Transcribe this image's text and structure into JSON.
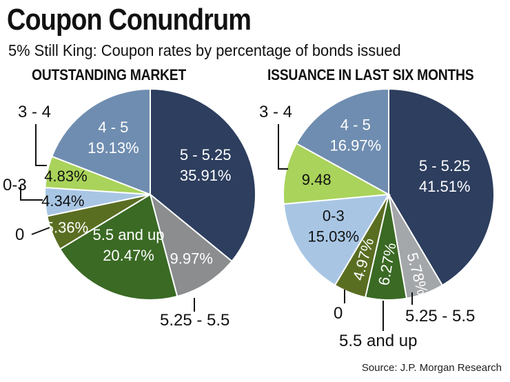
{
  "header": {
    "title": "Coupon Conundrum",
    "subtitle": "5% Still King: Coupon rates by percentage of bonds issued"
  },
  "footer": {
    "source": "Source: J.P. Morgan Research"
  },
  "colors": {
    "navy": "#2d3e5e",
    "steel": "#6f8db0",
    "lightgreen": "#a9d35a",
    "lightblue": "#a8c6e4",
    "olive": "#5a6e22",
    "green": "#3a6a24",
    "gray": "#8b8d8f",
    "lightgray": "#a4a7aa"
  },
  "chart_data": [
    {
      "type": "pie",
      "title": "OUTSTANDING MARKET",
      "slices": [
        {
          "category": "5 - 5.25",
          "value": 35.91,
          "label": "35.91%",
          "color": "#2d3e5e"
        },
        {
          "category": "5.25 - 5.5",
          "value": 9.97,
          "label": "9.97%",
          "color": "#8b8d8f"
        },
        {
          "category": "5.5 and up",
          "value": 20.47,
          "label": "20.47%",
          "color": "#3a6a24"
        },
        {
          "category": "0",
          "value": 5.36,
          "label": "5.36%",
          "color": "#5a6e22"
        },
        {
          "category": "0-3",
          "value": 4.34,
          "label": "4.34%",
          "color": "#a8c6e4"
        },
        {
          "category": "3 - 4",
          "value": 4.83,
          "label": "4.83%",
          "color": "#a9d35a"
        },
        {
          "category": "4 - 5",
          "value": 19.13,
          "label": "19.13%",
          "color": "#6f8db0"
        }
      ]
    },
    {
      "type": "pie",
      "title": "ISSUANCE IN LAST SIX MONTHS",
      "slices": [
        {
          "category": "5 - 5.25",
          "value": 41.51,
          "label": "41.51%",
          "color": "#2d3e5e"
        },
        {
          "category": "5.25 - 5.5",
          "value": 5.78,
          "label": "5.78%",
          "color": "#a4a7aa"
        },
        {
          "category": "5.5 and up",
          "value": 6.27,
          "label": "6.27%",
          "color": "#3a6a24"
        },
        {
          "category": "0",
          "value": 4.97,
          "label": "4.97%",
          "color": "#5a6e22"
        },
        {
          "category": "0-3",
          "value": 15.03,
          "label": "15.03%",
          "color": "#a8c6e4"
        },
        {
          "category": "3 - 4",
          "value": 9.48,
          "label": "9.48",
          "color": "#a9d35a"
        },
        {
          "category": "4 - 5",
          "value": 16.97,
          "label": "16.97%",
          "color": "#6f8db0"
        }
      ]
    }
  ]
}
